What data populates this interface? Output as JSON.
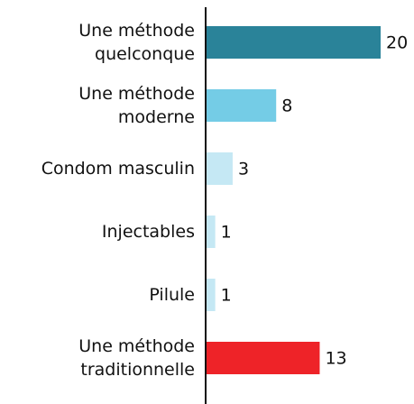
{
  "chart_data": {
    "type": "bar",
    "orientation": "horizontal",
    "categories": [
      "Une méthode quelconque",
      "Une méthode moderne",
      "Condom masculin",
      "Injectables",
      "Pilule",
      "Une méthode traditionnelle"
    ],
    "values": [
      20,
      8,
      3,
      1,
      1,
      13
    ],
    "colors": [
      "#2a8399",
      "#74cce6",
      "#c5e8f4",
      "#c5e8f4",
      "#c5e8f4",
      "#ee2328"
    ],
    "xlim": [
      0,
      20
    ]
  }
}
